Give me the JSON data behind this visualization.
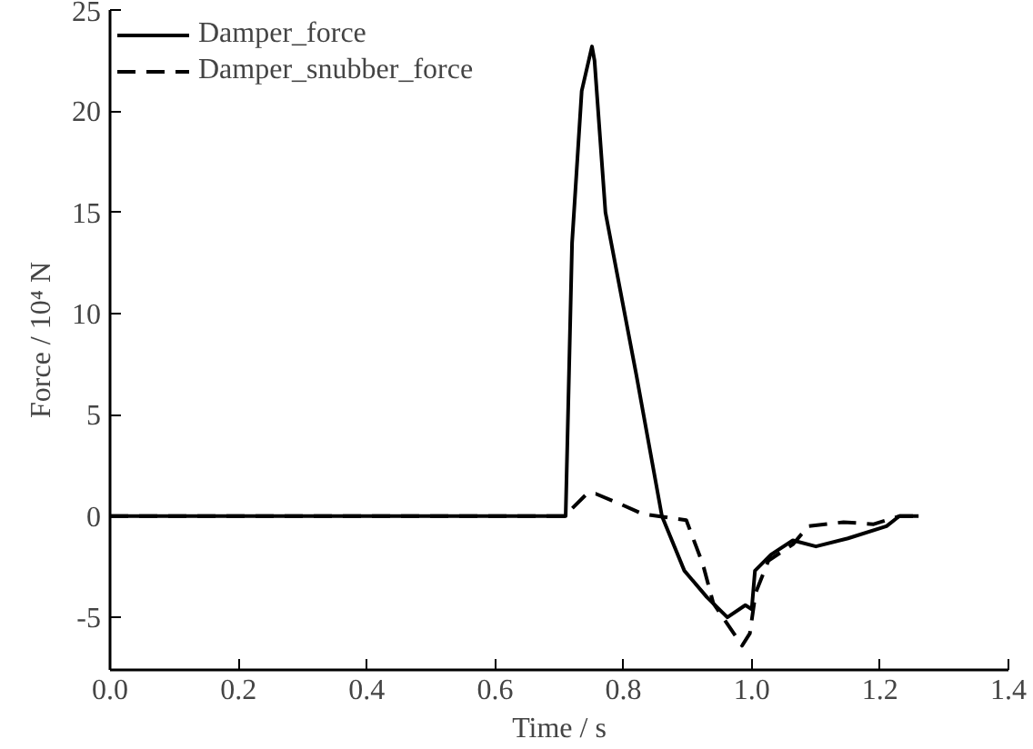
{
  "chart_data": {
    "type": "line",
    "xlabel": "Time / s",
    "ylabel": "Force / 10⁴ N",
    "xlim": [
      0,
      1.4
    ],
    "ylim": [
      -7.6,
      25
    ],
    "xticks": [
      {
        "value": 0,
        "label": "0.0"
      },
      {
        "value": 0.2,
        "label": "0.2"
      },
      {
        "value": 0.4,
        "label": "0.4"
      },
      {
        "value": 0.6,
        "label": "0.6"
      },
      {
        "value": 0.8,
        "label": "0.8"
      },
      {
        "value": 1.0,
        "label": "1.0"
      },
      {
        "value": 1.2,
        "label": "1.2"
      },
      {
        "value": 1.4,
        "label": "1.4"
      }
    ],
    "yticks": [
      -5,
      0,
      5,
      10,
      15,
      20,
      25
    ],
    "grid": false,
    "legend": "top left",
    "series": [
      {
        "name": "Damper_force",
        "color": "#000000",
        "line_style": "solid",
        "x": [
          0,
          0.71,
          0.72,
          0.735,
          0.751,
          0.755,
          0.772,
          0.82,
          0.86,
          0.895,
          0.93,
          0.962,
          0.99,
          1.0,
          1.005,
          1.03,
          1.064,
          1.1,
          1.15,
          1.21,
          1.23,
          1.26
        ],
        "values": [
          0,
          0,
          13.5,
          21,
          23.2,
          22.5,
          15,
          7,
          0,
          -2.7,
          -4,
          -5,
          -4.4,
          -4.6,
          -2.7,
          -1.9,
          -1.2,
          -1.5,
          -1.1,
          -0.5,
          0,
          0
        ]
      },
      {
        "name": "Damper_snubber_force",
        "color": "#000000",
        "line_style": "dashed",
        "x": [
          0,
          0.708,
          0.743,
          0.757,
          0.795,
          0.83,
          0.898,
          0.924,
          0.94,
          0.985,
          0.997,
          1.006,
          1.026,
          1.064,
          1.088,
          1.143,
          1.19,
          1.231,
          1.26
        ],
        "values": [
          0,
          0,
          1.1,
          1.1,
          0.6,
          0.1,
          -0.2,
          -2.4,
          -4.3,
          -6.4,
          -5.8,
          -3.8,
          -2.2,
          -1.4,
          -0.5,
          -0.3,
          -0.4,
          0,
          0
        ]
      }
    ]
  }
}
